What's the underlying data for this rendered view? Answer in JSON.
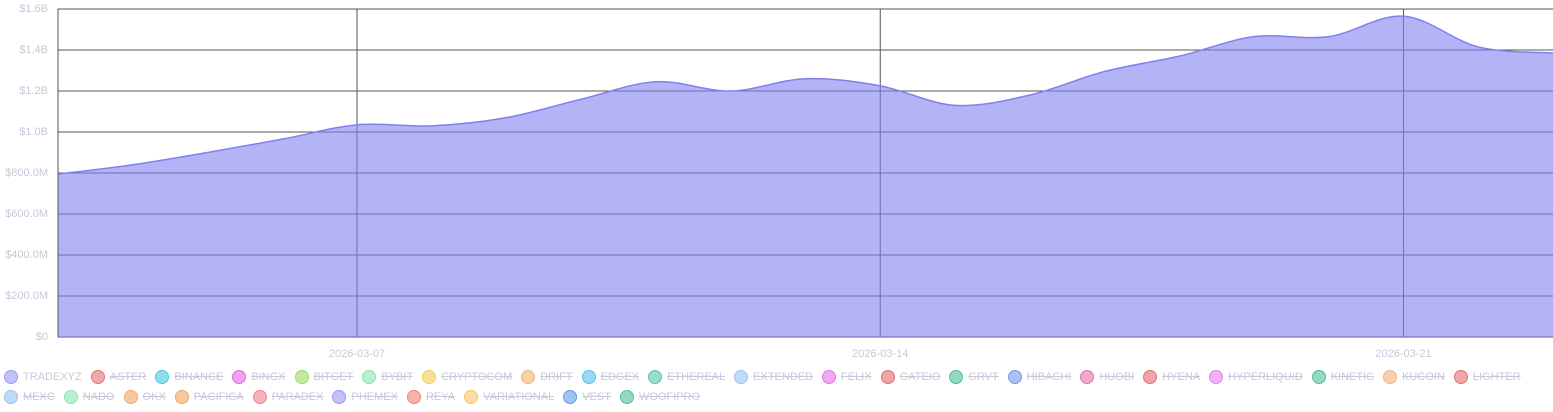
{
  "chart_data": {
    "type": "area",
    "x": [
      "2026-03-03",
      "2026-03-04",
      "2026-03-05",
      "2026-03-06",
      "2026-03-07",
      "2026-03-08",
      "2026-03-09",
      "2026-03-10",
      "2026-03-11",
      "2026-03-12",
      "2026-03-13",
      "2026-03-14",
      "2026-03-15",
      "2026-03-16",
      "2026-03-17",
      "2026-03-18",
      "2026-03-19",
      "2026-03-20",
      "2026-03-21",
      "2026-03-22",
      "2026-03-23"
    ],
    "xlim": [
      "2026-03-03",
      "2026-03-23"
    ],
    "xticks": [
      "2026-03-07",
      "2026-03-14",
      "2026-03-21"
    ],
    "ylim": [
      0,
      1600000000
    ],
    "yticks": [
      {
        "value": 0,
        "label": "$0"
      },
      {
        "value": 200000000,
        "label": "$200.0M"
      },
      {
        "value": 400000000,
        "label": "$400.0M"
      },
      {
        "value": 600000000,
        "label": "$600.0M"
      },
      {
        "value": 800000000,
        "label": "$800.0M"
      },
      {
        "value": 1000000000,
        "label": "$1.0B"
      },
      {
        "value": 1200000000,
        "label": "$1.2B"
      },
      {
        "value": 1400000000,
        "label": "$1.4B"
      },
      {
        "value": 1600000000,
        "label": "$1.6B"
      }
    ],
    "grid": true,
    "series": [
      {
        "name": "TRADEXYZ",
        "color": "#8080f0",
        "values": [
          795000000,
          840000000,
          900000000,
          965000000,
          1035000000,
          1030000000,
          1070000000,
          1160000000,
          1245000000,
          1200000000,
          1260000000,
          1225000000,
          1130000000,
          1180000000,
          1295000000,
          1370000000,
          1465000000,
          1465000000,
          1565000000,
          1415000000,
          1385000000
        ]
      },
      {
        "name": "ASTER",
        "color": "#e05050",
        "hidden": true
      },
      {
        "name": "BINANCE",
        "color": "#22b8d8",
        "hidden": true
      },
      {
        "name": "BINGX",
        "color": "#e040e0",
        "hidden": true
      },
      {
        "name": "BITGET",
        "color": "#80d040",
        "hidden": true
      },
      {
        "name": "BYBIT",
        "color": "#70e0a0",
        "hidden": true
      },
      {
        "name": "CRYPTOCOM",
        "color": "#f0c030",
        "hidden": true
      },
      {
        "name": "DRIFT",
        "color": "#f0a050",
        "hidden": true
      },
      {
        "name": "EDGEX",
        "color": "#30b0e8",
        "hidden": true
      },
      {
        "name": "ETHEREAL",
        "color": "#30b898",
        "hidden": true
      },
      {
        "name": "EXTENDED",
        "color": "#80b8f0",
        "hidden": true
      },
      {
        "name": "FELIX",
        "color": "#e050e0",
        "hidden": true
      },
      {
        "name": "GATEIO",
        "color": "#e04848",
        "hidden": true
      },
      {
        "name": "GRVT",
        "color": "#20b080",
        "hidden": true
      },
      {
        "name": "HIBACHI",
        "color": "#5080e8",
        "hidden": true
      },
      {
        "name": "HUOBI",
        "color": "#e05090",
        "hidden": true
      },
      {
        "name": "HYENA",
        "color": "#e04850",
        "hidden": true
      },
      {
        "name": "HYPERLIQUID",
        "color": "#e060f0",
        "hidden": true
      },
      {
        "name": "KINETIC",
        "color": "#20b080",
        "hidden": true
      },
      {
        "name": "KUCOIN",
        "color": "#f0a060",
        "hidden": true
      },
      {
        "name": "LIGHTER",
        "color": "#e04850",
        "hidden": true
      },
      {
        "name": "MEXC",
        "color": "#80b0f0",
        "hidden": true
      },
      {
        "name": "NADO",
        "color": "#70e0a0",
        "hidden": true
      },
      {
        "name": "OKX",
        "color": "#f09040",
        "hidden": true
      },
      {
        "name": "PACIFICA",
        "color": "#f09040",
        "hidden": true
      },
      {
        "name": "PARADEX",
        "color": "#f06070",
        "hidden": true
      },
      {
        "name": "PHEMEX",
        "color": "#8080f0",
        "hidden": true
      },
      {
        "name": "REYA",
        "color": "#f06050",
        "hidden": true
      },
      {
        "name": "VARIATIONAL",
        "color": "#f8b840",
        "hidden": true
      },
      {
        "name": "VEST",
        "color": "#4080e8",
        "hidden": true
      },
      {
        "name": "WOOFIPRO",
        "color": "#20b080",
        "hidden": true
      }
    ]
  }
}
